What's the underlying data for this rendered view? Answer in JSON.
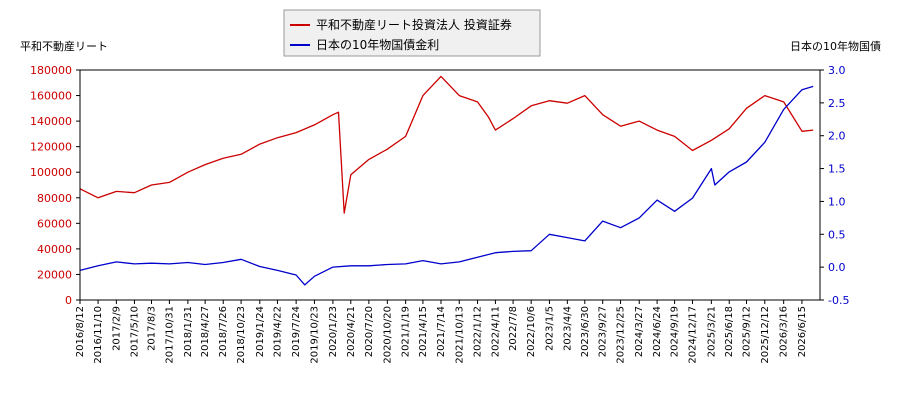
{
  "chart_data": {
    "type": "line",
    "legend": {
      "placement": "top-center",
      "entries": [
        "平和不動産リート投資法人 投資証券",
        "日本の10年物国債金利"
      ]
    },
    "left_axis": {
      "label": "平和不動産リート",
      "range": [
        0,
        180000
      ],
      "ticks": [
        0,
        20000,
        40000,
        60000,
        80000,
        100000,
        120000,
        140000,
        160000,
        180000
      ]
    },
    "right_axis": {
      "label": "日本の10年物国債",
      "range": [
        -0.5,
        3.0
      ],
      "ticks": [
        "3.0",
        "2.5",
        "2.0",
        "1.5",
        "1.0",
        "0.5",
        "0.0",
        "-0.5"
      ]
    },
    "x_tick_labels": [
      "2016/8/12",
      "2016/11/10",
      "2017/2/9",
      "2017/5/10",
      "2017/8/3",
      "2017/10/31",
      "2018/1/31",
      "2018/4/27",
      "2018/7/26",
      "2018/10/23",
      "2019/1/24",
      "2019/4/22",
      "2019/7/24",
      "2019/10/23",
      "2020/1/23",
      "2020/4/21",
      "2020/7/20",
      "2020/10/20",
      "2021/1/19",
      "2021/4/15",
      "2021/7/14",
      "2021/10/13",
      "2022/1/12",
      "2022/4/11",
      "2022/7/8",
      "2022/10/6",
      "2023/1/5",
      "2023/4/4",
      "2023/6/30",
      "2023/9/27",
      "2023/12/25",
      "2024/3/27",
      "2024/6/24",
      "2024/9/19",
      "2024/12/17",
      "2025/3/21",
      "2025/6/18",
      "2025/9/12",
      "2025/12/12",
      "2026/3/16",
      "2026/6/15"
    ],
    "grid": false,
    "series": [
      {
        "name": "平和不動産リート投資法人 投資証券",
        "axis": "left",
        "color": "#cc0000",
        "x": [
          "2016/8/12",
          "2016/11/10",
          "2017/2/9",
          "2017/5/10",
          "2017/8/3",
          "2017/10/31",
          "2018/1/31",
          "2018/4/27",
          "2018/7/26",
          "2018/10/23",
          "2019/1/24",
          "2019/4/22",
          "2019/7/24",
          "2019/10/23",
          "2020/1/23",
          "2020/2/20",
          "2020/3/19",
          "2020/4/21",
          "2020/7/20",
          "2020/10/20",
          "2021/1/19",
          "2021/4/15",
          "2021/7/14",
          "2021/10/13",
          "2022/1/12",
          "2022/3/8",
          "2022/4/11",
          "2022/7/8",
          "2022/10/6",
          "2023/1/5",
          "2023/4/4",
          "2023/6/30",
          "2023/9/27",
          "2023/12/25",
          "2024/3/27",
          "2024/6/24",
          "2024/9/19",
          "2024/12/17",
          "2025/3/21",
          "2025/6/18",
          "2025/9/12",
          "2025/12/12",
          "2026/3/16",
          "2026/6/15",
          "2026/8/10"
        ],
        "values": [
          87000,
          80000,
          85000,
          84000,
          90000,
          92000,
          100000,
          106000,
          111000,
          114000,
          122000,
          127000,
          131000,
          137000,
          145000,
          147000,
          68000,
          98000,
          110000,
          118000,
          128000,
          160000,
          175000,
          160000,
          155000,
          143000,
          133000,
          142000,
          152000,
          156000,
          154000,
          160000,
          145000,
          136000,
          140000,
          133000,
          128000,
          117000,
          125000,
          134000,
          150000,
          160000,
          155000,
          132000,
          133000
        ]
      },
      {
        "name": "日本の10年物国債金利",
        "axis": "right",
        "color": "#0000cc",
        "x": [
          "2016/8/12",
          "2016/11/10",
          "2017/2/9",
          "2017/5/10",
          "2017/8/3",
          "2017/10/31",
          "2018/1/31",
          "2018/4/27",
          "2018/7/26",
          "2018/10/23",
          "2019/1/24",
          "2019/4/22",
          "2019/7/24",
          "2019/9/5",
          "2019/10/23",
          "2020/1/23",
          "2020/4/21",
          "2020/7/20",
          "2020/10/20",
          "2021/1/19",
          "2021/4/15",
          "2021/7/14",
          "2021/10/13",
          "2022/1/12",
          "2022/4/11",
          "2022/7/8",
          "2022/10/6",
          "2023/1/5",
          "2023/4/4",
          "2023/6/30",
          "2023/9/27",
          "2023/12/25",
          "2024/3/27",
          "2024/6/24",
          "2024/9/19",
          "2024/12/17",
          "2025/3/21",
          "2025/4/7",
          "2025/6/18",
          "2025/9/12",
          "2025/12/12",
          "2026/3/16",
          "2026/6/15",
          "2026/8/10"
        ],
        "values": [
          -0.05,
          0.02,
          0.08,
          0.05,
          0.06,
          0.05,
          0.07,
          0.04,
          0.07,
          0.12,
          0.01,
          -0.05,
          -0.12,
          -0.27,
          -0.14,
          0.0,
          0.02,
          0.02,
          0.04,
          0.05,
          0.1,
          0.05,
          0.08,
          0.15,
          0.22,
          0.24,
          0.25,
          0.5,
          0.45,
          0.4,
          0.7,
          0.6,
          0.75,
          1.02,
          0.85,
          1.05,
          1.5,
          1.25,
          1.45,
          1.6,
          1.9,
          2.4,
          2.7,
          2.75
        ]
      }
    ]
  }
}
